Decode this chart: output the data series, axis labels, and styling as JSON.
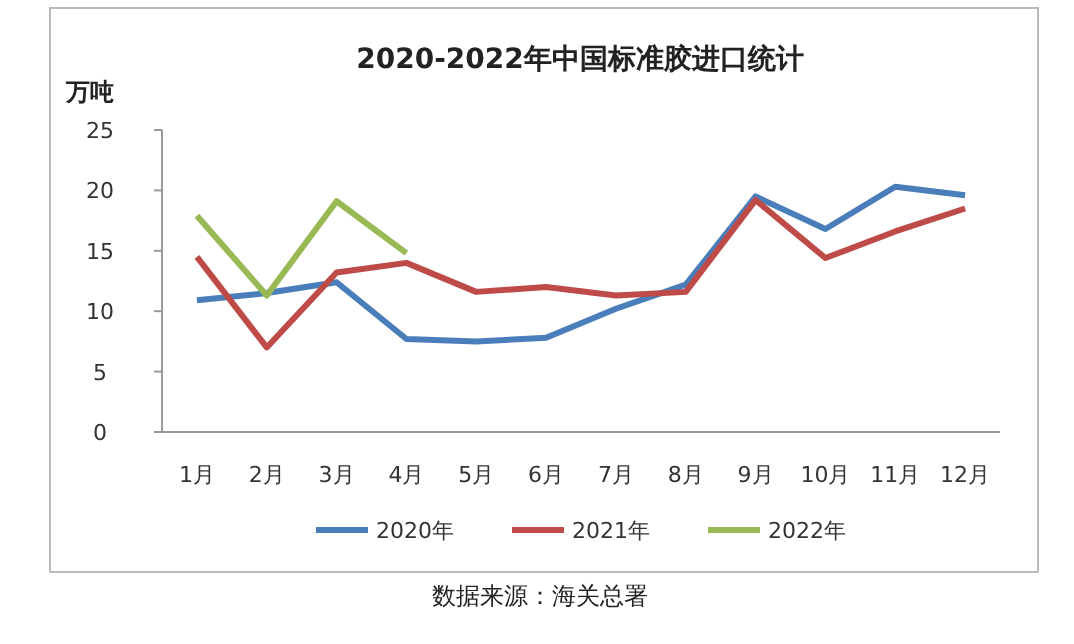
{
  "chart_data": {
    "type": "line",
    "title": "2020-2022年中国标准胶进口统计",
    "ylabel": "万吨",
    "categories": [
      "1月",
      "2月",
      "3月",
      "4月",
      "5月",
      "6月",
      "7月",
      "8月",
      "9月",
      "10月",
      "11月",
      "12月"
    ],
    "series": [
      {
        "name": "2020年",
        "color": "#4a7ebb",
        "values": [
          10.9,
          11.5,
          12.4,
          7.7,
          7.5,
          7.8,
          10.2,
          12.2,
          19.5,
          16.8,
          20.3,
          19.6
        ]
      },
      {
        "name": "2021年",
        "color": "#be4b48",
        "values": [
          14.5,
          7.0,
          13.2,
          14.0,
          11.6,
          12.0,
          11.3,
          11.6,
          19.2,
          14.4,
          16.6,
          18.5
        ]
      },
      {
        "name": "2022年",
        "color": "#98b954",
        "values": [
          17.9,
          11.3,
          19.1,
          14.8,
          null,
          null,
          null,
          null,
          null,
          null,
          null,
          null
        ]
      }
    ],
    "ylim": [
      0,
      25
    ],
    "yticks": [
      0,
      5,
      10,
      15,
      20,
      25
    ],
    "grid": false,
    "legend": "bottom",
    "line_style": "solid",
    "marker": "none",
    "annotations": [
      "数据来源：海关总署"
    ]
  }
}
